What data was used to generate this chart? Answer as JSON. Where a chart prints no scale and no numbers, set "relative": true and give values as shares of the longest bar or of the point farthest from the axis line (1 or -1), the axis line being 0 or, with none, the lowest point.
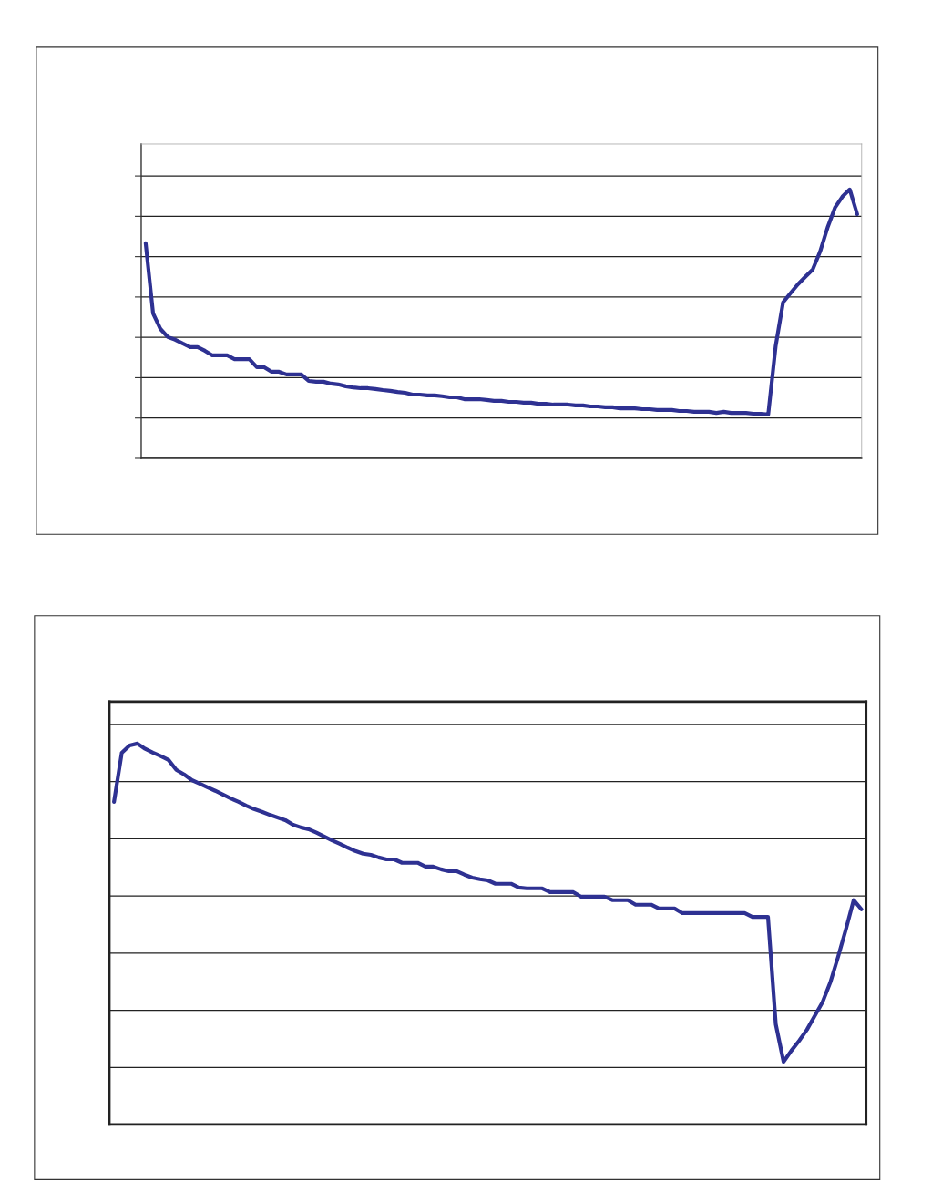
{
  "chart_data": [
    {
      "type": "line",
      "relative": true,
      "grid": "y",
      "tick_labels": false,
      "categories": [
        null,
        null,
        null,
        null,
        null,
        null,
        null,
        null,
        null,
        null,
        null,
        null,
        null,
        null,
        null,
        null,
        null,
        null,
        null,
        null,
        null,
        null,
        null,
        null,
        null,
        null,
        null,
        null,
        null,
        null,
        null,
        null,
        null,
        null,
        null,
        null,
        null,
        null,
        null,
        null,
        null,
        null,
        null,
        null,
        null,
        null,
        null,
        null,
        null,
        null,
        null,
        null,
        null,
        null,
        null,
        null,
        null,
        null,
        null,
        null,
        null,
        null,
        null,
        null,
        null,
        null,
        null,
        null,
        null,
        null,
        null,
        null,
        null,
        null,
        null,
        null,
        null,
        null,
        null,
        null,
        null,
        null,
        null,
        null,
        null,
        null,
        null,
        null,
        null,
        null,
        null,
        null,
        null,
        null,
        null,
        null,
        null
      ],
      "series": [
        {
          "color": "#2e3192",
          "values": [
            0.8,
            0.539,
            0.481,
            0.451,
            0.441,
            0.427,
            0.414,
            0.414,
            0.4,
            0.383,
            0.383,
            0.383,
            0.369,
            0.369,
            0.369,
            0.339,
            0.339,
            0.322,
            0.322,
            0.312,
            0.312,
            0.312,
            0.288,
            0.285,
            0.285,
            0.278,
            0.275,
            0.268,
            0.264,
            0.261,
            0.261,
            0.258,
            0.254,
            0.251,
            0.247,
            0.244,
            0.237,
            0.237,
            0.234,
            0.234,
            0.231,
            0.227,
            0.227,
            0.22,
            0.22,
            0.22,
            0.217,
            0.214,
            0.214,
            0.21,
            0.21,
            0.207,
            0.207,
            0.203,
            0.203,
            0.2,
            0.2,
            0.2,
            0.197,
            0.197,
            0.193,
            0.193,
            0.19,
            0.19,
            0.186,
            0.186,
            0.186,
            0.183,
            0.183,
            0.18,
            0.18,
            0.18,
            0.176,
            0.176,
            0.173,
            0.173,
            0.173,
            0.169,
            0.173,
            0.169,
            0.169,
            0.169,
            0.166,
            0.166,
            0.163,
            0.417,
            0.58,
            0.614,
            0.647,
            0.675,
            0.702,
            0.769,
            0.858,
            0.932,
            0.973,
            1,
            0.908
          ]
        }
      ]
    },
    {
      "type": "line",
      "relative": true,
      "grid": "y",
      "tick_labels": false,
      "categories": [
        null,
        null,
        null,
        null,
        null,
        null,
        null,
        null,
        null,
        null,
        null,
        null,
        null,
        null,
        null,
        null,
        null,
        null,
        null,
        null,
        null,
        null,
        null,
        null,
        null,
        null,
        null,
        null,
        null,
        null,
        null,
        null,
        null,
        null,
        null,
        null,
        null,
        null,
        null,
        null,
        null,
        null,
        null,
        null,
        null,
        null,
        null,
        null,
        null,
        null,
        null,
        null,
        null,
        null,
        null,
        null,
        null,
        null,
        null,
        null,
        null,
        null,
        null,
        null,
        null,
        null,
        null,
        null,
        null,
        null,
        null,
        null,
        null,
        null,
        null,
        null,
        null,
        null,
        null,
        null,
        null,
        null,
        null,
        null,
        null,
        null,
        null,
        null,
        null,
        null,
        null,
        null,
        null,
        null,
        null,
        null,
        null
      ],
      "series": [
        {
          "color": "#2e3192",
          "values": [
            0.847,
            0.976,
            0.995,
            1,
            0.986,
            0.976,
            0.967,
            0.957,
            0.931,
            0.919,
            0.904,
            0.895,
            0.885,
            0.876,
            0.866,
            0.856,
            0.847,
            0.837,
            0.828,
            0.821,
            0.813,
            0.806,
            0.799,
            0.787,
            0.78,
            0.775,
            0.766,
            0.756,
            0.746,
            0.737,
            0.727,
            0.718,
            0.711,
            0.708,
            0.701,
            0.696,
            0.696,
            0.687,
            0.687,
            0.687,
            0.677,
            0.677,
            0.67,
            0.665,
            0.665,
            0.656,
            0.648,
            0.644,
            0.641,
            0.632,
            0.632,
            0.632,
            0.622,
            0.62,
            0.62,
            0.62,
            0.61,
            0.61,
            0.61,
            0.61,
            0.598,
            0.598,
            0.598,
            0.598,
            0.589,
            0.589,
            0.589,
            0.577,
            0.577,
            0.577,
            0.567,
            0.567,
            0.567,
            0.555,
            0.555,
            0.555,
            0.555,
            0.555,
            0.555,
            0.555,
            0.555,
            0.555,
            0.545,
            0.545,
            0.545,
            0.263,
            0.165,
            0.194,
            0.22,
            0.249,
            0.285,
            0.321,
            0.373,
            0.44,
            0.512,
            0.589,
            0.565
          ]
        }
      ]
    }
  ]
}
